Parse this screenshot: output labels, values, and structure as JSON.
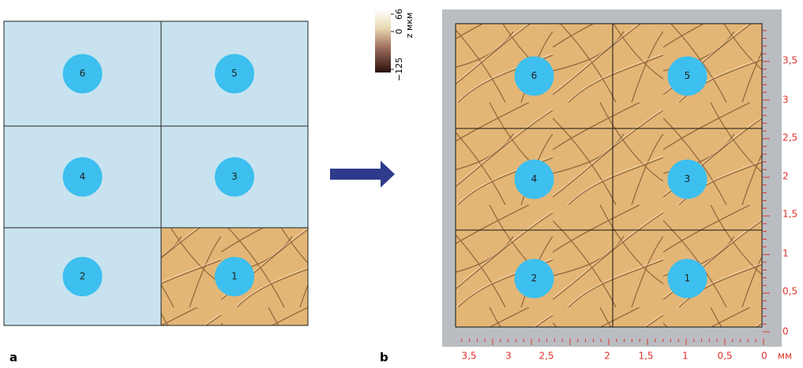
{
  "panel_a": {
    "label": "a",
    "cells": [
      "6",
      "5",
      "4",
      "3",
      "2",
      "1"
    ]
  },
  "panel_b": {
    "label": "b",
    "cells": [
      "6",
      "5",
      "4",
      "3",
      "2",
      "1"
    ],
    "colorbar": {
      "ticks": [
        "66",
        "0",
        "−125"
      ],
      "label": "z мкм"
    },
    "y_axis": {
      "ticks": [
        "0",
        "0,5",
        "1",
        "1,5",
        "2",
        "2,5",
        "3",
        "3,5"
      ]
    },
    "x_axis": {
      "ticks": [
        "3,5",
        "3",
        "2,5",
        "2",
        "1,5",
        "1",
        "0,5",
        "0"
      ],
      "unit": "мм"
    }
  }
}
